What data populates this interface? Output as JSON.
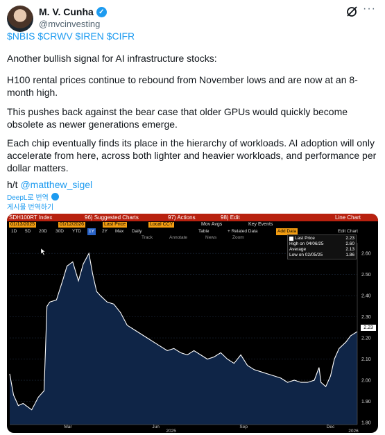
{
  "tweet": {
    "author_name": "M. V. Cunha",
    "verified_mark": "✓",
    "handle": "@mvcinvesting",
    "more_glyph": "···",
    "tickers": "$NBIS $CRWV $IREN $CIFR",
    "paragraphs": [
      "Another bullish signal for AI infrastructure stocks:",
      "H100 rental prices continue to rebound from November lows and are now at an 8-month high.",
      "This pushes back against the bear case that older GPUs would quickly become obsolete as newer generations emerge.",
      "Each chip eventually finds its place in the hierarchy of workloads. AI adoption will only accelerate from here, across both lighter and heavier workloads, and performance per dollar matters."
    ],
    "hat_tip_prefix": "h/t ",
    "hat_tip_mention": "@matthew_sigel",
    "deepl_label": "DeepL로 번역",
    "translate_label": "게시물 번역하기",
    "icons": {
      "avatar": "avatar",
      "verified": "verified-icon",
      "grok": "grok-icon",
      "more": "more-icon",
      "deepl": "deepl-icon"
    },
    "accent_color": "#1d9bf0"
  },
  "bloomberg": {
    "toolbar1": {
      "ticker": "SDH100RT Index",
      "suggested": "96) Suggested Charts",
      "actions": "97) Actions",
      "edit": "98) Edit",
      "right": "Line Chart"
    },
    "toolbar2": {
      "start_date": "01/13/2025",
      "end_date": "01/12/2026",
      "field": "Last Price",
      "currency": "Local CCY",
      "mov_avgs": "Mov Avgs",
      "key_events": "Key Events"
    },
    "toolbar3": {
      "periods": [
        "1D",
        "5D",
        "20D",
        "30D",
        "YTD",
        "1Y",
        "2Y",
        "Max"
      ],
      "selected_period": "1Y",
      "frequency": "Daily",
      "table": "Table",
      "related": "+ Related Data",
      "add_data": "Add Data",
      "edit_chart": "Edit Chart"
    },
    "toolbar4": {
      "track": "Track",
      "annotate": "Annotate",
      "news": "News",
      "zoom": "Zoom"
    },
    "legend": [
      {
        "label": "Last Price",
        "value": "2.23"
      },
      {
        "label": "High on 04/06/25",
        "value": "2.60"
      },
      {
        "label": "Average",
        "value": "2.13"
      },
      {
        "label": "Low on 02/05/25",
        "value": "1.86"
      }
    ],
    "last_price_tag": "2.23",
    "colors": {
      "header": "#b8210f",
      "field": "#f39d11",
      "area": "#0f2547",
      "line": "#ffffff"
    }
  },
  "chart_data": {
    "type": "area",
    "title": "SDH100RT Index",
    "series": [
      {
        "name": "Last Price",
        "x": [
          "2025-01-13",
          "2025-01-17",
          "2025-01-22",
          "2025-01-27",
          "2025-02-05",
          "2025-02-12",
          "2025-02-18",
          "2025-02-21",
          "2025-02-24",
          "2025-03-03",
          "2025-03-10",
          "2025-03-14",
          "2025-03-20",
          "2025-03-26",
          "2025-03-31",
          "2025-04-06",
          "2025-04-10",
          "2025-04-14",
          "2025-04-18",
          "2025-04-25",
          "2025-05-02",
          "2025-05-09",
          "2025-05-16",
          "2025-05-23",
          "2025-05-30",
          "2025-06-06",
          "2025-06-13",
          "2025-06-20",
          "2025-06-27",
          "2025-07-04",
          "2025-07-11",
          "2025-07-18",
          "2025-07-25",
          "2025-08-01",
          "2025-08-08",
          "2025-08-15",
          "2025-08-22",
          "2025-08-29",
          "2025-09-05",
          "2025-09-12",
          "2025-09-19",
          "2025-09-26",
          "2025-10-03",
          "2025-10-10",
          "2025-10-17",
          "2025-10-24",
          "2025-10-31",
          "2025-11-07",
          "2025-11-14",
          "2025-11-21",
          "2025-11-28",
          "2025-12-03",
          "2025-12-05",
          "2025-12-10",
          "2025-12-15",
          "2025-12-19",
          "2025-12-24",
          "2025-12-31",
          "2026-01-05",
          "2026-01-12"
        ],
        "y": [
          2.03,
          1.93,
          1.88,
          1.89,
          1.86,
          1.92,
          1.95,
          2.35,
          2.37,
          2.38,
          2.48,
          2.54,
          2.56,
          2.47,
          2.55,
          2.6,
          2.5,
          2.42,
          2.4,
          2.37,
          2.36,
          2.32,
          2.26,
          2.24,
          2.22,
          2.2,
          2.18,
          2.16,
          2.14,
          2.15,
          2.13,
          2.12,
          2.14,
          2.12,
          2.1,
          2.11,
          2.13,
          2.1,
          2.08,
          2.12,
          2.07,
          2.05,
          2.04,
          2.03,
          2.02,
          2.01,
          1.99,
          2.0,
          1.99,
          1.99,
          2.0,
          2.06,
          1.99,
          1.97,
          2.02,
          2.1,
          2.15,
          2.18,
          2.21,
          2.23
        ]
      }
    ],
    "xlabel": "",
    "ylabel": "",
    "x_ticks": [
      "Mar",
      "Jun",
      "Sep",
      "Dec"
    ],
    "year_labels": [
      "2025",
      "2026"
    ],
    "y_ticks": [
      1.8,
      1.9,
      2.0,
      2.1,
      2.2,
      2.3,
      2.4,
      2.5,
      2.6
    ],
    "ylim": [
      1.79,
      2.65
    ],
    "xlim": [
      "2025-01-13",
      "2026-01-12"
    ],
    "grid": true,
    "legend_position": "top-right"
  }
}
